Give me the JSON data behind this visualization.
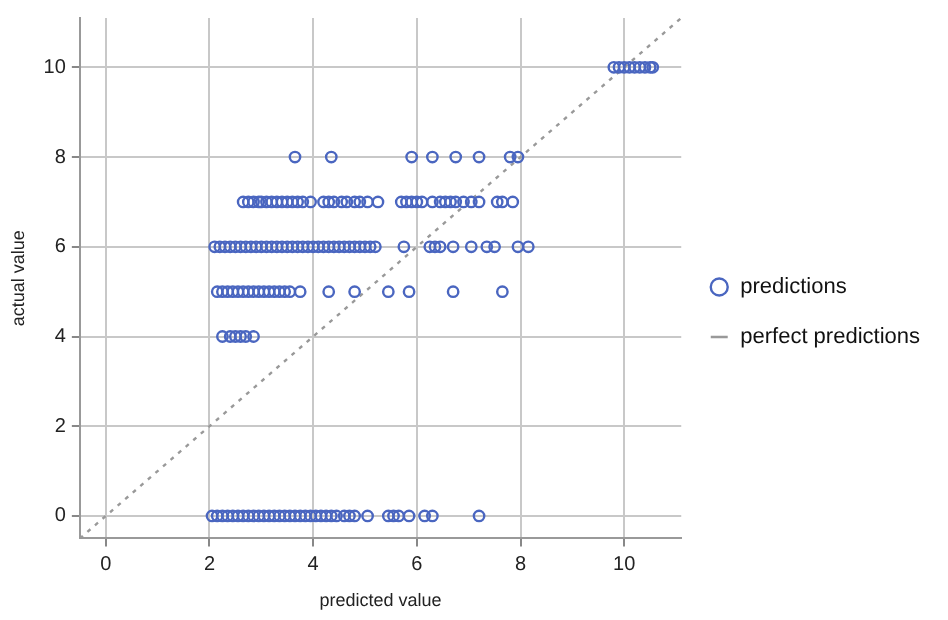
{
  "chart_data": {
    "type": "scatter",
    "xlabel": "predicted value",
    "ylabel": "actual value",
    "xlim": [
      -0.5,
      11.1
    ],
    "ylim": [
      -0.5,
      11.1
    ],
    "xticks": [
      0,
      2,
      4,
      6,
      8,
      10
    ],
    "yticks": [
      0,
      2,
      4,
      6,
      8,
      10
    ],
    "grid": true,
    "legend": "right",
    "marker": "circle",
    "series": [
      {
        "name": "predictions",
        "color": "#4a66c0",
        "type": "scatter",
        "x": [
          2.05,
          2.15,
          2.25,
          2.35,
          2.45,
          2.55,
          2.65,
          2.75,
          2.85,
          2.95,
          3.05,
          3.15,
          3.25,
          3.35,
          3.45,
          3.55,
          3.65,
          3.75,
          3.85,
          3.95,
          4.05,
          4.15,
          4.25,
          4.35,
          4.45,
          4.6,
          4.7,
          4.8,
          5.05,
          5.45,
          5.55,
          5.65,
          5.85,
          6.15,
          6.3,
          7.2,
          2.25,
          2.4,
          2.5,
          2.6,
          2.7,
          2.85,
          2.15,
          2.25,
          2.35,
          2.45,
          2.55,
          2.65,
          2.75,
          2.85,
          2.95,
          3.05,
          3.15,
          3.25,
          3.35,
          3.45,
          3.55,
          3.75,
          4.3,
          4.8,
          5.45,
          5.85,
          6.7,
          7.65,
          2.1,
          2.2,
          2.3,
          2.4,
          2.5,
          2.6,
          2.7,
          2.8,
          2.9,
          3.0,
          3.1,
          3.2,
          3.3,
          3.4,
          3.5,
          3.6,
          3.7,
          3.8,
          3.9,
          4.0,
          4.1,
          4.2,
          4.3,
          4.4,
          4.5,
          4.6,
          4.7,
          4.8,
          4.9,
          5.0,
          5.1,
          5.2,
          5.75,
          6.25,
          6.35,
          6.45,
          6.7,
          7.05,
          7.35,
          7.5,
          7.95,
          8.15,
          2.65,
          2.75,
          2.85,
          2.95,
          3.0,
          3.1,
          3.2,
          3.3,
          3.4,
          3.5,
          3.6,
          3.7,
          3.8,
          3.95,
          4.2,
          4.3,
          4.4,
          4.55,
          4.65,
          4.8,
          4.9,
          5.05,
          5.25,
          5.7,
          5.8,
          5.9,
          6.0,
          6.1,
          6.3,
          6.45,
          6.55,
          6.65,
          6.75,
          6.9,
          7.05,
          7.2,
          7.55,
          7.65,
          7.85,
          3.65,
          4.35,
          5.9,
          6.3,
          6.75,
          7.2,
          7.8,
          7.95,
          9.8,
          9.9,
          10.0,
          10.1,
          10.2,
          10.3,
          10.4,
          10.5,
          10.55
        ],
        "values": [
          0,
          0,
          0,
          0,
          0,
          0,
          0,
          0,
          0,
          0,
          0,
          0,
          0,
          0,
          0,
          0,
          0,
          0,
          0,
          0,
          0,
          0,
          0,
          0,
          0,
          0,
          0,
          0,
          0,
          0,
          0,
          0,
          0,
          0,
          0,
          0,
          4,
          4,
          4,
          4,
          4,
          4,
          5,
          5,
          5,
          5,
          5,
          5,
          5,
          5,
          5,
          5,
          5,
          5,
          5,
          5,
          5,
          5,
          5,
          5,
          5,
          5,
          5,
          5,
          6,
          6,
          6,
          6,
          6,
          6,
          6,
          6,
          6,
          6,
          6,
          6,
          6,
          6,
          6,
          6,
          6,
          6,
          6,
          6,
          6,
          6,
          6,
          6,
          6,
          6,
          6,
          6,
          6,
          6,
          6,
          6,
          6,
          6,
          6,
          6,
          6,
          6,
          6,
          6,
          6,
          6,
          7,
          7,
          7,
          7,
          7,
          7,
          7,
          7,
          7,
          7,
          7,
          7,
          7,
          7,
          7,
          7,
          7,
          7,
          7,
          7,
          7,
          7,
          7,
          7,
          7,
          7,
          7,
          7,
          7,
          7,
          7,
          7,
          7,
          7,
          7,
          7,
          7,
          7,
          7,
          8,
          8,
          8,
          8,
          8,
          8,
          8,
          8,
          10,
          10,
          10,
          10,
          10,
          10,
          10,
          10,
          10
        ]
      },
      {
        "name": "perfect predictions",
        "color": "#999999",
        "type": "line",
        "line_style": "dotted",
        "marker": "none",
        "x": [
          -0.5,
          11.1
        ],
        "values": [
          -0.5,
          11.1
        ]
      }
    ]
  }
}
